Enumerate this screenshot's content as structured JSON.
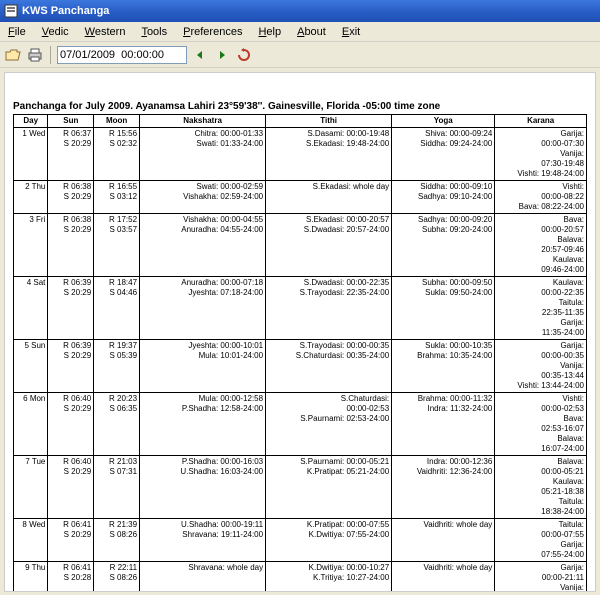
{
  "window": {
    "title": "KWS Panchanga"
  },
  "menu": [
    "File",
    "Vedic",
    "Western",
    "Tools",
    "Preferences",
    "Help",
    "About",
    "Exit"
  ],
  "toolbar": {
    "date_value": "07/01/2009  00:00:00"
  },
  "caption": "Panchanga for July 2009. Ayanamsa Lahiri  23°59'38''. Gainesville, Florida -05:00 time zone",
  "headers": [
    "Day",
    "Sun",
    "Moon",
    "Nakshatra",
    "Tithi",
    "Yoga",
    "Karana"
  ],
  "rows": [
    {
      "day": "1 Wed",
      "sun": "R 06:37\nS 20:29",
      "moon": "R 15:56\nS 02:32",
      "nak": "Chitra: 00:00-01:33\nSwati: 01:33-24:00",
      "tit": "S.Dasami: 00:00-19:48\nS.Ekadasi: 19:48-24:00",
      "yog": "Shiva: 00:00-09:24\nSiddha: 09:24-24:00",
      "kar": "Garija:\n00:00-07:30\nVanija:\n07:30-19:48\nVishti: 19:48-24:00"
    },
    {
      "day": "2 Thu",
      "sun": "R 06:38\nS 20:29",
      "moon": "R 16:55\nS 03:12",
      "nak": "Swati: 00:00-02:59\nVishakha: 02:59-24:00",
      "tit": "S.Ekadasi: whole day",
      "yog": "Siddha: 00:00-09:10\nSadhya: 09:10-24:00",
      "kar": "Vishti:\n00:00-08:22\nBava: 08:22-24:00"
    },
    {
      "day": "3 Fri",
      "sun": "R 06:38\nS 20:29",
      "moon": "R 17:52\nS 03:57",
      "nak": "Vishakha: 00:00-04:55\nAnuradha: 04:55-24:00",
      "tit": "S.Ekadasi: 00:00-20:57\nS.Dwadasi: 20:57-24:00",
      "yog": "Sadhya: 00:00-09:20\nSubha: 09:20-24:00",
      "kar": "Bava:\n00:00-20:57\nBalava:\n20:57-09:46\nKaulava:\n09:46-24:00"
    },
    {
      "day": "4 Sat",
      "sun": "R 06:39\nS 20:29",
      "moon": "R 18:47\nS 04:46",
      "nak": "Anuradha: 00:00-07:18\nJyeshta: 07:18-24:00",
      "tit": "S.Dwadasi: 00:00-22:35\nS.Trayodasi: 22:35-24:00",
      "yog": "Subha: 00:00-09:50\nSukla: 09:50-24:00",
      "kar": "Kaulava:\n00:00-22:35\nTaitula:\n22:35-11:35\nGarija:\n11:35-24:00"
    },
    {
      "day": "5 Sun",
      "sun": "R 06:39\nS 20:29",
      "moon": "R 19:37\nS 05:39",
      "nak": "Jyeshta: 00:00-10:01\nMula: 10:01-24:00",
      "tit": "S.Trayodasi: 00:00-00:35\nS.Chaturdasi: 00:35-24:00",
      "yog": "Sukla: 00:00-10:35\nBrahma: 10:35-24:00",
      "kar": "Garija:\n00:00-00:35\nVanija:\n00:35-13:44\nVishti: 13:44-24:00"
    },
    {
      "day": "6 Mon",
      "sun": "R 06:40\nS 20:29",
      "moon": "R 20:23\nS 06:35",
      "nak": "Mula: 00:00-12:58\nP.Shadha: 12:58-24:00",
      "tit": "S.Chaturdasi:\n00:00-02:53\nS.Paurnami: 02:53-24:00",
      "yog": "Brahma: 00:00-11:32\nIndra: 11:32-24:00",
      "kar": "Vishti:\n00:00-02:53\nBava:\n02:53-16:07\nBalava:\n16:07-24:00"
    },
    {
      "day": "7 Tue",
      "sun": "R 06:40\nS 20:29",
      "moon": "R 21:03\nS 07:31",
      "nak": "P.Shadha: 00:00-16:03\nU.Shadha: 16:03-24:00",
      "tit": "S.Paurnami: 00:00-05:21\nK.Pratipat: 05:21-24:00",
      "yog": "Indra: 00:00-12:36\nVaidhriti: 12:36-24:00",
      "kar": "Balava:\n00:00-05:21\nKaulava:\n05:21-18:38\nTaitula:\n18:38-24:00"
    },
    {
      "day": "8 Wed",
      "sun": "R 06:41\nS 20:29",
      "moon": "R 21:39\nS 08:26",
      "nak": "U.Shadha: 00:00-19:11\nShravana: 19:11-24:00",
      "tit": "K.Pratipat: 00:00-07:55\nK.Dwitiya: 07:55-24:00",
      "yog": "Vaidhriti: whole day",
      "kar": "Taitula:\n00:00-07:55\nGarija:\n07:55-24:00"
    },
    {
      "day": "9 Thu",
      "sun": "R 06:41\nS 20:28",
      "moon": "R 22:11\nS 08:26",
      "nak": "Shravana: whole day",
      "tit": "K.Dwitiya: 00:00-10:27\nK.Tritiya: 10:27-24:00",
      "yog": "Vaidhriti: whole day",
      "kar": "Garija:\n00:00-21:11\nVanija:"
    }
  ]
}
